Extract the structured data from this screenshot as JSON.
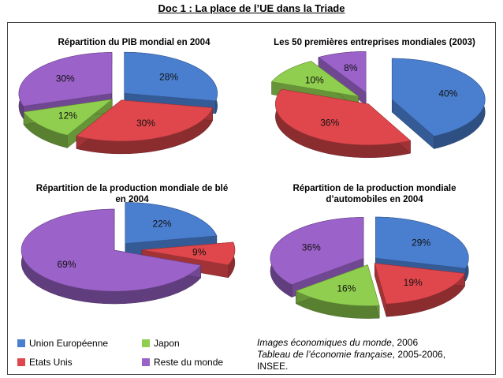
{
  "title": "Doc 1 : La place de l’UE dans la Triade",
  "colors": {
    "ue": "#4a7fd0",
    "japon": "#8fce4e",
    "eu": "#e0474c",
    "reste": "#9b62c9"
  },
  "legend": [
    {
      "key": "ue",
      "label": "Union Européenne"
    },
    {
      "key": "japon",
      "label": "Japon"
    },
    {
      "key": "eu",
      "label": "Etats Unis"
    },
    {
      "key": "reste",
      "label": "Reste du monde"
    }
  ],
  "source": {
    "line1_italic": "Images économiques du monde",
    "line1_rest": ", 2006",
    "line2_italic": "Tableau de l’économie française",
    "line2_rest": ", 2005-2006,",
    "line3": "INSEE."
  },
  "chart_data": [
    {
      "type": "pie",
      "title": "Répartition du PIB mondial en 2004",
      "slices": [
        {
          "key": "ue",
          "value": 28
        },
        {
          "key": "eu",
          "value": 30
        },
        {
          "key": "japon",
          "value": 12
        },
        {
          "key": "reste",
          "value": 30
        }
      ]
    },
    {
      "type": "pie",
      "title": "Les 50 premières entreprises mondiales (2003)",
      "slices": [
        {
          "key": "ue",
          "value": 40
        },
        {
          "key": "eu",
          "value": 36
        },
        {
          "key": "japon",
          "value": 10
        },
        {
          "key": "reste",
          "value": 8
        }
      ]
    },
    {
      "type": "pie",
      "title_line1": "Répartition de la production mondiale de blé",
      "title_line2": "en 2004",
      "slices": [
        {
          "key": "ue",
          "value": 22
        },
        {
          "key": "eu",
          "value": 9
        },
        {
          "key": "reste",
          "value": 69
        }
      ]
    },
    {
      "type": "pie",
      "title_line1": "Répartition de la production mondiale",
      "title_line2": "d’automobiles en 2004",
      "slices": [
        {
          "key": "ue",
          "value": 29
        },
        {
          "key": "eu",
          "value": 19
        },
        {
          "key": "japon",
          "value": 16
        },
        {
          "key": "reste",
          "value": 36
        }
      ]
    }
  ]
}
